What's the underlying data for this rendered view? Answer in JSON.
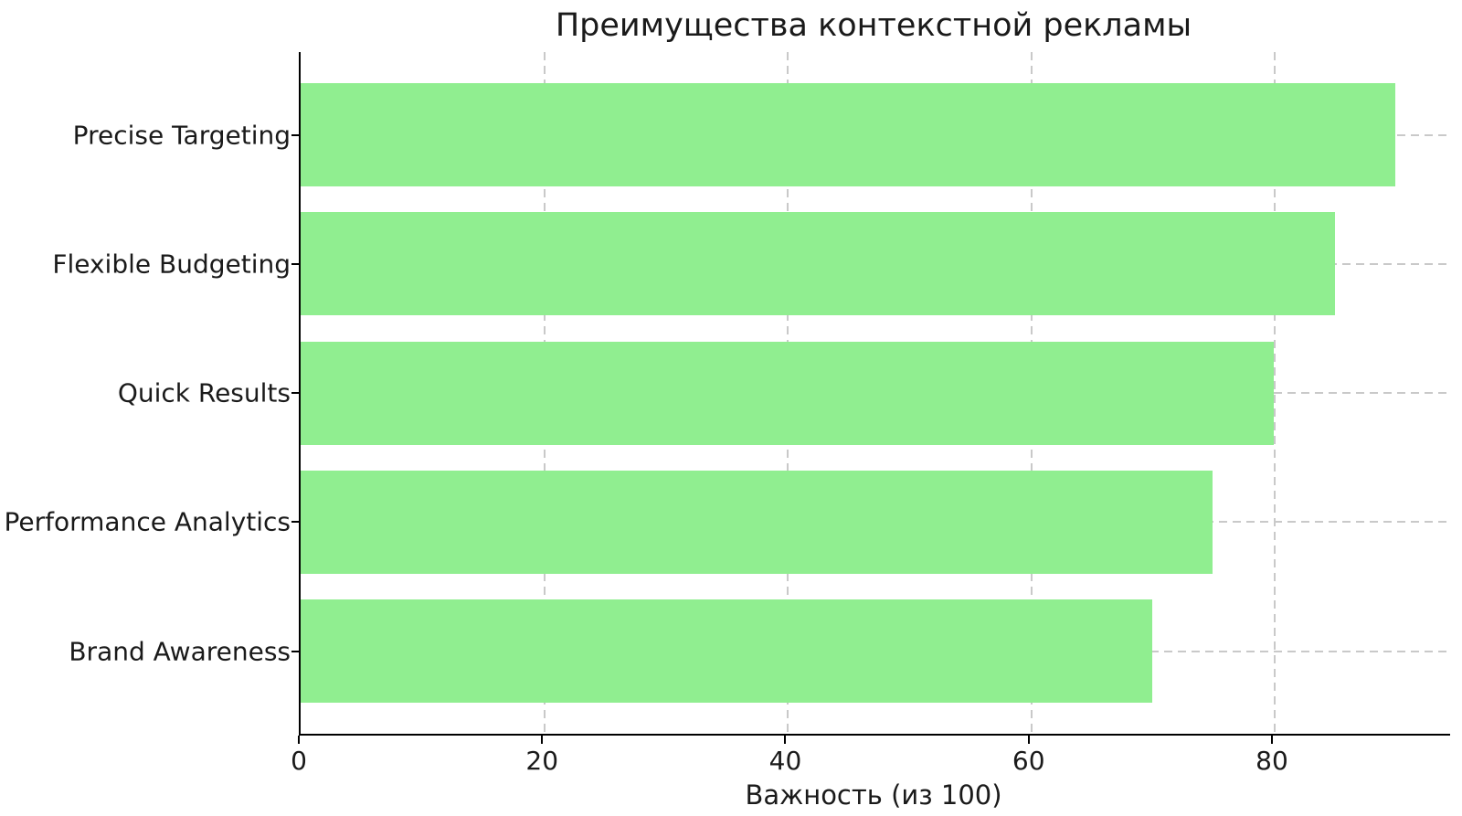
{
  "chart_data": {
    "type": "bar",
    "orientation": "horizontal",
    "title": "Преимущества контекстной рекламы",
    "xlabel": "Важность (из 100)",
    "ylabel": "",
    "categories": [
      "Precise Targeting",
      "Flexible Budgeting",
      "Quick Results",
      "Performance Analytics",
      "Brand Awareness"
    ],
    "values": [
      90,
      85,
      80,
      75,
      70
    ],
    "xticks": [
      0,
      20,
      40,
      60,
      80
    ],
    "xlim": [
      0,
      94.5
    ],
    "bar_color": "#90EE90",
    "grid": true,
    "grid_style": "dashed",
    "grid_color": "#c9c9c9",
    "spine_color": "#000000",
    "legend": null
  }
}
